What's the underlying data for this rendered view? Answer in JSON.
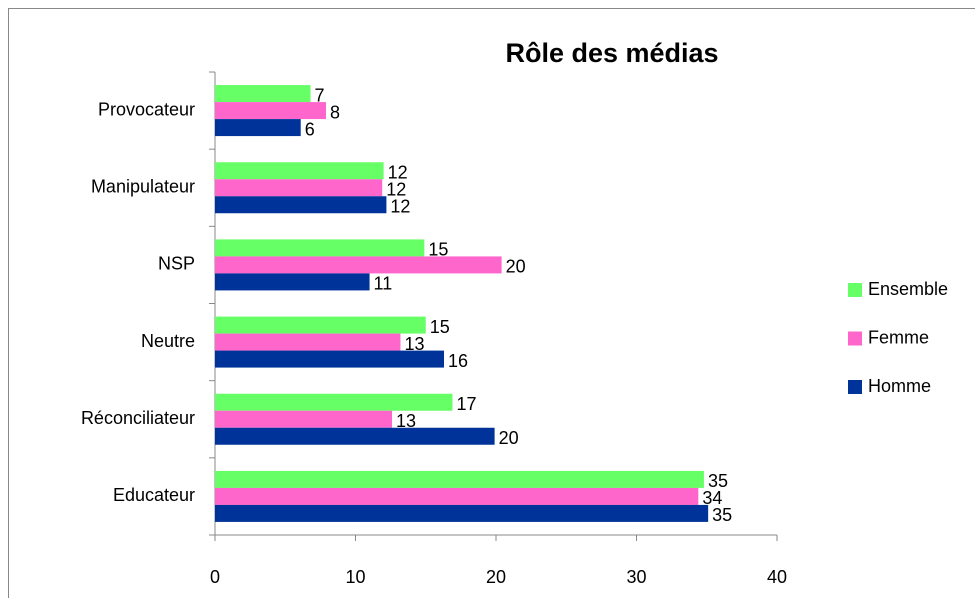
{
  "chart_data": {
    "type": "bar",
    "orientation": "horizontal",
    "title": "Rôle des médias",
    "categories": [
      "Provocateur",
      "Manipulateur",
      "NSP",
      "Neutre",
      "Réconciliateur",
      "Educateur"
    ],
    "series": [
      {
        "name": "Ensemble",
        "color": "#66ff66",
        "values": [
          6.8,
          12.0,
          14.9,
          15.0,
          16.9,
          34.8
        ],
        "value_labels": [
          "7",
          "12",
          "15",
          "15",
          "17",
          "35"
        ]
      },
      {
        "name": "Femme",
        "color": "#ff66cc",
        "values": [
          7.9,
          11.9,
          20.4,
          13.2,
          12.6,
          34.4
        ],
        "value_labels": [
          "8",
          "12",
          "20",
          "13",
          "13",
          "34"
        ]
      },
      {
        "name": "Homme",
        "color": "#003399",
        "values": [
          6.1,
          12.2,
          11.0,
          16.3,
          19.9,
          35.1
        ],
        "value_labels": [
          "6",
          "12",
          "11",
          "16",
          "20",
          "35"
        ]
      }
    ],
    "xlim": [
      0,
      40
    ],
    "xticks": [
      0,
      10,
      20,
      30,
      40
    ],
    "grid": false,
    "legend": "right"
  }
}
